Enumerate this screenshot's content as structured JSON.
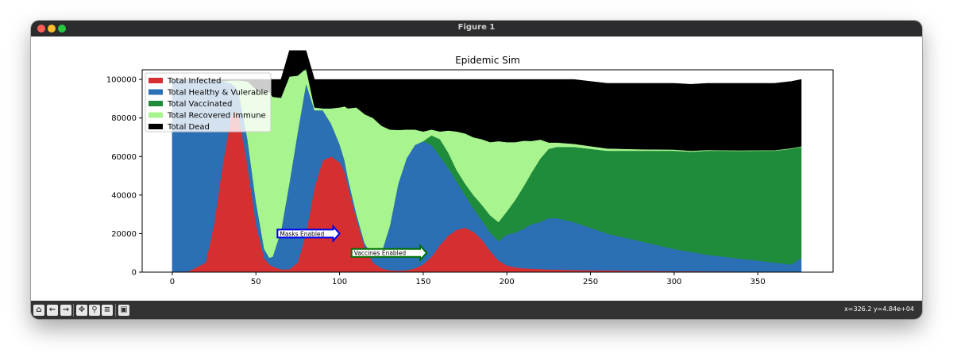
{
  "window": {
    "title": "Figure 1"
  },
  "toolbar": {
    "buttons": [
      {
        "name": "home-button",
        "icon": "home-icon",
        "glyph": "⌂"
      },
      {
        "name": "back-button",
        "icon": "arrow-left-icon",
        "glyph": "←"
      },
      {
        "name": "forward-button",
        "icon": "arrow-right-icon",
        "glyph": "→"
      },
      {
        "name": "pan-button",
        "icon": "move-icon",
        "glyph": "✥"
      },
      {
        "name": "zoom-button",
        "icon": "magnifier-icon",
        "glyph": "⚲"
      },
      {
        "name": "subplots-button",
        "icon": "sliders-icon",
        "glyph": "≡"
      },
      {
        "name": "save-button",
        "icon": "floppy-icon",
        "glyph": "▣"
      }
    ],
    "coords": "x=326.2 y=4.84e+04"
  },
  "chart_data": {
    "type": "area",
    "title": "Epidemic Sim",
    "xlabel": "",
    "ylabel": "",
    "xlim": [
      -18,
      395
    ],
    "ylim": [
      0,
      105000
    ],
    "xticks": [
      0,
      50,
      100,
      150,
      200,
      250,
      300,
      350
    ],
    "yticks": [
      0,
      20000,
      40000,
      60000,
      80000,
      100000
    ],
    "grid": false,
    "legend_position": "top-left",
    "x": [
      0,
      10,
      20,
      25,
      30,
      35,
      38,
      40,
      45,
      50,
      55,
      58,
      60,
      65,
      70,
      75,
      80,
      85,
      90,
      95,
      100,
      103,
      105,
      110,
      115,
      120,
      125,
      130,
      135,
      140,
      145,
      150,
      155,
      160,
      165,
      170,
      175,
      180,
      185,
      190,
      195,
      200,
      205,
      210,
      215,
      220,
      225,
      230,
      240,
      250,
      260,
      270,
      280,
      290,
      300,
      310,
      320,
      330,
      340,
      350,
      360,
      370,
      376
    ],
    "series": [
      {
        "name": "Total Infected",
        "color": "#d62f31",
        "values": [
          0,
          500,
          5000,
          25000,
          55000,
          80000,
          84000,
          80000,
          55000,
          25000,
          7000,
          4000,
          3000,
          1500,
          1500,
          5000,
          20000,
          44000,
          58000,
          60000,
          57000,
          52000,
          45000,
          28000,
          13000,
          5000,
          2000,
          1000,
          800,
          1000,
          2000,
          4000,
          8000,
          14000,
          19000,
          22000,
          23000,
          21000,
          17000,
          11000,
          6000,
          3500,
          2500,
          2000,
          1800,
          1600,
          1400,
          1300,
          1100,
          1000,
          900,
          800,
          700,
          600,
          500,
          500,
          400,
          400,
          300,
          300,
          300,
          300,
          300
        ]
      },
      {
        "name": "Total Healthy & Vulerable",
        "color": "#2b6fb5",
        "values": [
          100000,
          99500,
          95000,
          75000,
          44000,
          18000,
          12000,
          12000,
          14000,
          12000,
          5000,
          3500,
          5000,
          20000,
          45000,
          68000,
          78000,
          40000,
          26000,
          17000,
          9500,
          6000,
          4000,
          2500,
          2000,
          3000,
          8000,
          23000,
          45000,
          58000,
          64000,
          64000,
          58000,
          46000,
          35000,
          25000,
          17000,
          12000,
          10000,
          9500,
          10000,
          16000,
          18000,
          20500,
          23200,
          24400,
          26600,
          26700,
          24900,
          22000,
          19100,
          17200,
          15300,
          13400,
          11500,
          10000,
          8600,
          7600,
          6600,
          5700,
          4700,
          3700,
          7000
        ]
      },
      {
        "name": "Total Vaccinated",
        "color": "#1f8c3b",
        "values": [
          0,
          0,
          0,
          0,
          0,
          0,
          0,
          0,
          0,
          0,
          0,
          0,
          0,
          0,
          0,
          0,
          0,
          0,
          0,
          0,
          0,
          0,
          0,
          0,
          0,
          0,
          0,
          0,
          0,
          0,
          0,
          0,
          5000,
          9000,
          8000,
          6000,
          6000,
          7000,
          8000,
          9000,
          10000,
          12000,
          17000,
          22000,
          27000,
          33000,
          36000,
          37000,
          39000,
          41000,
          43000,
          45000,
          47000,
          49000,
          51000,
          52000,
          54000,
          55000,
          56000,
          57000,
          58000,
          60000,
          57800
        ]
      },
      {
        "name": "Total Recovered Immune",
        "color": "#a8f58f",
        "values": [
          0,
          0,
          0,
          0,
          0,
          1500,
          3500,
          7500,
          30000,
          58000,
          82000,
          86000,
          83000,
          69000,
          55000,
          29000,
          7800,
          1500,
          1000,
          8000,
          19000,
          28000,
          36000,
          55000,
          67000,
          72000,
          66000,
          50000,
          28000,
          15000,
          8000,
          5000,
          3000,
          4000,
          11500,
          20000,
          26000,
          30000,
          34000,
          38000,
          42000,
          36000,
          30000,
          23700,
          16100,
          9800,
          3300,
          2300,
          1600,
          1400,
          1200,
          1000,
          800,
          700,
          600,
          500,
          400,
          300,
          300,
          300,
          300,
          300,
          200
        ]
      },
      {
        "name": "Total Dead",
        "color": "#000000",
        "values": [
          0,
          0,
          0,
          0,
          1000,
          500,
          500,
          500,
          1000,
          5000,
          6000,
          6500,
          9000,
          9500,
          13500,
          13000,
          9200,
          14500,
          15000,
          15000,
          14500,
          14000,
          15000,
          14500,
          18000,
          20000,
          24000,
          26000,
          26200,
          26000,
          26000,
          27000,
          26000,
          27000,
          26500,
          27000,
          28000,
          30000,
          31000,
          32500,
          32000,
          32500,
          32500,
          31800,
          31900,
          31200,
          32700,
          32700,
          33400,
          33600,
          33800,
          34000,
          34200,
          34300,
          34400,
          34500,
          34600,
          34700,
          34800,
          34700,
          34700,
          34700,
          34700
        ]
      }
    ],
    "annotations": [
      {
        "text": "Masks Enabled",
        "x": 100,
        "y": 20000,
        "color": "#0000ee"
      },
      {
        "text": "Vaccines Enabled",
        "x": 152,
        "y": 10000,
        "color": "#007000"
      }
    ]
  }
}
